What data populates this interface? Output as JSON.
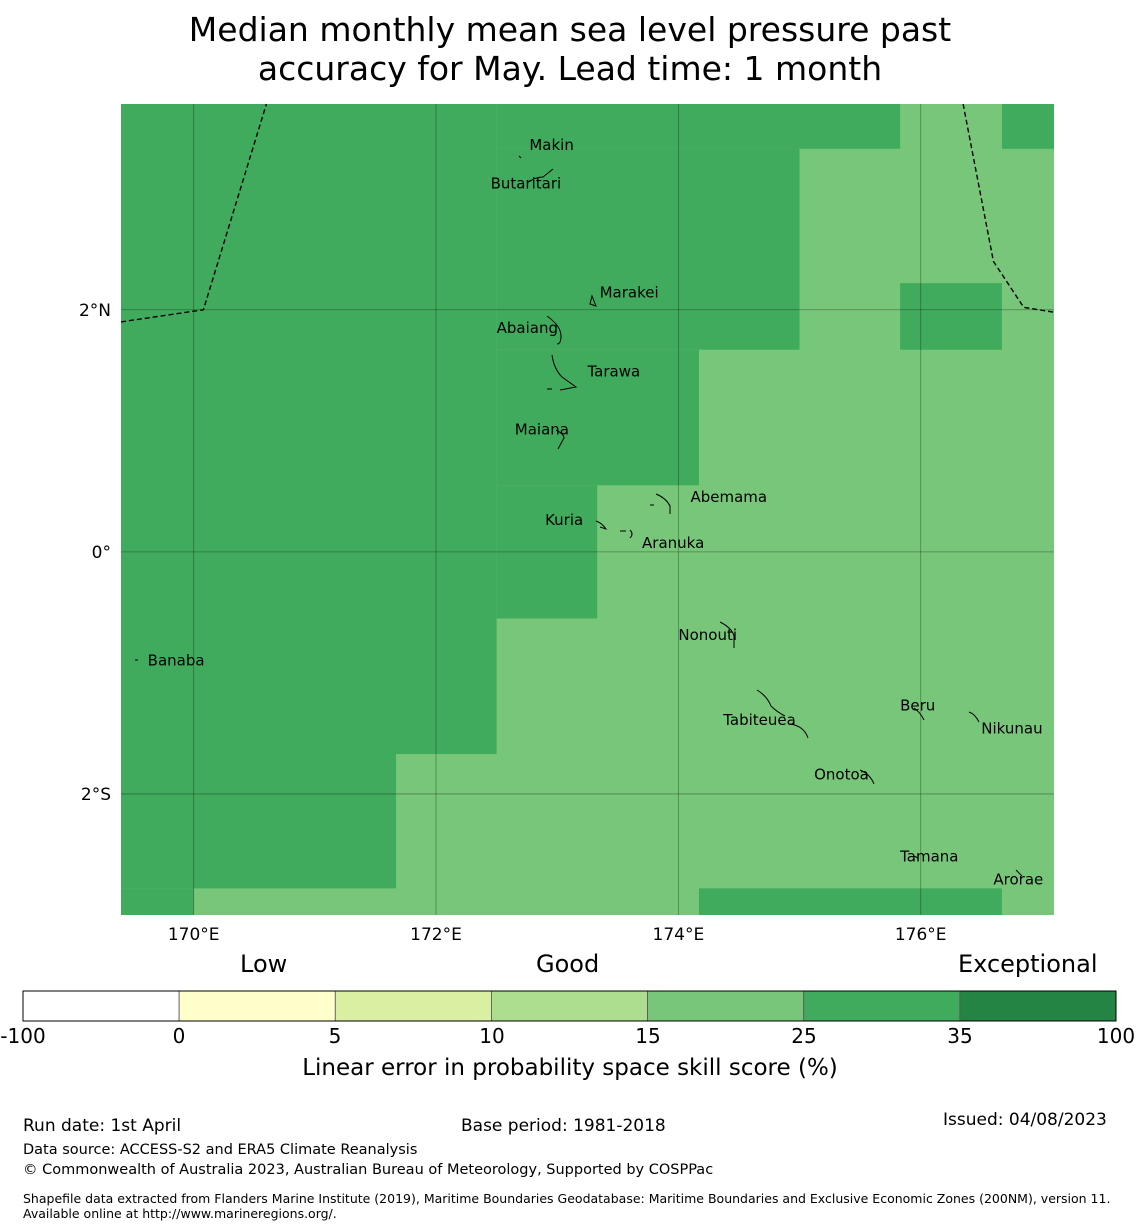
{
  "title": {
    "line1": "Median monthly mean sea level pressure past",
    "line2": "accuracy for May. Lead time: 1 month"
  },
  "map": {
    "extent": {
      "lon": [
        169.4,
        177.1
      ],
      "lat": [
        -3.0,
        3.7
      ]
    },
    "lon_ticks": [
      {
        "value": 170,
        "label": "170°E"
      },
      {
        "value": 172,
        "label": "172°E"
      },
      {
        "value": 174,
        "label": "174°E"
      },
      {
        "value": 176,
        "label": "176°E"
      }
    ],
    "lat_ticks": [
      {
        "value": 2,
        "label": "2°N"
      },
      {
        "value": 0,
        "label": "0°"
      },
      {
        "value": -2,
        "label": "2°S"
      }
    ],
    "colors": {
      "good_dark": "#41ab5d",
      "good_light": "#78c679"
    },
    "cells_35_100": [
      {
        "lon": [
          169.4,
          172.5
        ],
        "lat": [
          -1.67,
          3.7
        ]
      },
      {
        "lon": [
          172.5,
          174.17
        ],
        "lat": [
          3.33,
          3.7
        ]
      },
      {
        "lon": [
          174.17,
          175.83
        ],
        "lat": [
          3.33,
          3.7
        ]
      },
      {
        "lon": [
          172.5,
          175.0
        ],
        "lat": [
          1.67,
          3.33
        ]
      },
      {
        "lon": [
          172.5,
          174.17
        ],
        "lat": [
          0.55,
          1.67
        ]
      },
      {
        "lon": [
          172.5,
          173.33
        ],
        "lat": [
          -0.55,
          0.55
        ]
      },
      {
        "lon": [
          169.4,
          171.67
        ],
        "lat": [
          -2.78,
          -1.67
        ]
      },
      {
        "lon": [
          169.4,
          170.0
        ],
        "lat": [
          -3.0,
          -2.78
        ]
      },
      {
        "lon": [
          175.83,
          176.67
        ],
        "lat": [
          1.67,
          2.22
        ]
      },
      {
        "lon": [
          176.67,
          177.1
        ],
        "lat": [
          3.33,
          3.7
        ]
      },
      {
        "lon": [
          174.17,
          176.67
        ],
        "lat": [
          -3.0,
          -2.78
        ]
      }
    ],
    "places": [
      {
        "name": "Makin",
        "lon": 172.77,
        "lat": 3.32
      },
      {
        "name": "Butaritari",
        "lon": 172.45,
        "lat": 3.0
      },
      {
        "name": "Marakei",
        "lon": 173.35,
        "lat": 2.1
      },
      {
        "name": "Abaiang",
        "lon": 172.5,
        "lat": 1.81
      },
      {
        "name": "Tarawa",
        "lon": 173.25,
        "lat": 1.45
      },
      {
        "name": "Maiana",
        "lon": 172.65,
        "lat": 0.97
      },
      {
        "name": "Abemama",
        "lon": 174.1,
        "lat": 0.41
      },
      {
        "name": "Kuria",
        "lon": 172.9,
        "lat": 0.22
      },
      {
        "name": "Aranuka",
        "lon": 173.7,
        "lat": 0.03
      },
      {
        "name": "Banaba",
        "lon": 169.62,
        "lat": -0.94
      },
      {
        "name": "Nonouti",
        "lon": 174.0,
        "lat": -0.73
      },
      {
        "name": "Tabiteuea",
        "lon": 174.37,
        "lat": -1.43
      },
      {
        "name": "Beru",
        "lon": 175.83,
        "lat": -1.31
      },
      {
        "name": "Nikunau",
        "lon": 176.5,
        "lat": -1.5
      },
      {
        "name": "Onotoa",
        "lon": 175.12,
        "lat": -1.88
      },
      {
        "name": "Tamana",
        "lon": 175.83,
        "lat": -2.56
      },
      {
        "name": "Arorae",
        "lon": 176.6,
        "lat": -2.75
      }
    ],
    "eez_boundaries": [
      [
        [
          169.4,
          1.9
        ],
        [
          170.08,
          2.0
        ],
        [
          170.6,
          3.7
        ]
      ],
      [
        [
          176.35,
          3.7
        ],
        [
          176.6,
          2.4
        ],
        [
          176.85,
          2.02
        ],
        [
          177.1,
          1.98
        ]
      ]
    ]
  },
  "colorbar": {
    "category_labels": [
      "Low",
      "Good",
      "Exceptional"
    ],
    "bins": [
      {
        "from": "-100",
        "to": "0",
        "color": "#ffffff"
      },
      {
        "from": "0",
        "to": "5",
        "color": "#ffffcc"
      },
      {
        "from": "5",
        "to": "10",
        "color": "#d9f0a3"
      },
      {
        "from": "10",
        "to": "15",
        "color": "#addd8e"
      },
      {
        "from": "15",
        "to": "25",
        "color": "#78c679"
      },
      {
        "from": "25",
        "to": "35",
        "color": "#41ab5d"
      },
      {
        "from": "35",
        "to": "100",
        "color": "#238443"
      }
    ],
    "ticks": [
      "-100",
      "0",
      "5",
      "10",
      "15",
      "25",
      "35",
      "100"
    ],
    "title": "Linear error in probability space skill score (%)"
  },
  "footer": {
    "run_date": "Run date: 1st April",
    "base_period": "Base period: 1981-2018",
    "issued": "Issued: 04/08/2023",
    "data_source": "Data source: ACCESS-S2 and ERA5 Climate Reanalysis",
    "copyright": "© Commonwealth of Australia 2023, Australian Bureau of Meteorology, Supported by COSPPac",
    "shapefile": "Shapefile data extracted from Flanders Marine Institute (2019), Maritime Boundaries Geodatabase: Maritime Boundaries and Exclusive Economic Zones (200NM), version 11. Available online at http://www.marineregions.org/."
  }
}
